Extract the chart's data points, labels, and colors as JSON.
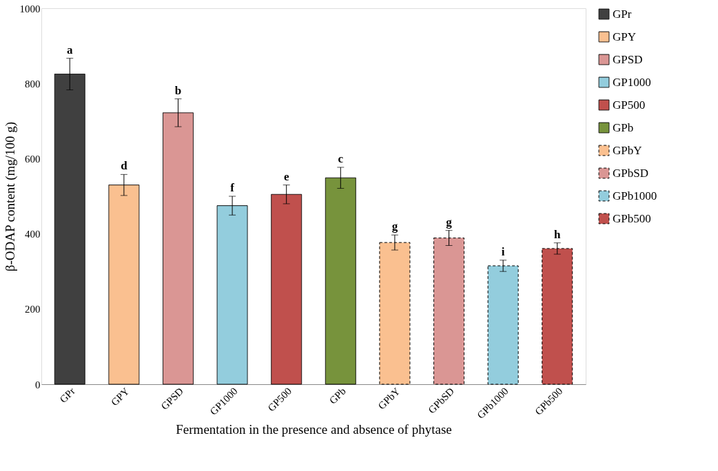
{
  "chart_data": {
    "type": "bar",
    "xlabel": "Fermentation in the presence and absence of phytase",
    "ylabel": "β-ODAP content (mg/100 g)",
    "categories": [
      "GPr",
      "GPY",
      "GPSD",
      "GP1000",
      "GP500",
      "GPb",
      "GPbY",
      "GPbSD",
      "GPb1000",
      "GPb500"
    ],
    "series": [
      {
        "name": "GPr",
        "color": "#404040",
        "values": [
          825,
          null,
          null,
          null,
          null,
          null,
          null,
          null,
          null,
          null
        ],
        "errors": [
          42,
          null,
          null,
          null,
          null,
          null,
          null,
          null,
          null,
          null
        ]
      },
      {
        "name": "GPY",
        "color": "#fac090",
        "values": [
          null,
          530,
          null,
          null,
          null,
          null,
          null,
          null,
          null,
          null
        ],
        "errors": [
          null,
          28,
          null,
          null,
          null,
          null,
          null,
          null,
          null,
          null
        ]
      },
      {
        "name": "GPSD",
        "color": "#da9694",
        "values": [
          null,
          null,
          722,
          null,
          null,
          null,
          null,
          null,
          null,
          null
        ],
        "errors": [
          null,
          null,
          37,
          null,
          null,
          null,
          null,
          null,
          null,
          null
        ]
      },
      {
        "name": "GP1000",
        "color": "#93cddd",
        "values": [
          null,
          null,
          null,
          475,
          null,
          null,
          null,
          null,
          null,
          null
        ],
        "errors": [
          null,
          null,
          null,
          25,
          null,
          null,
          null,
          null,
          null,
          null
        ]
      },
      {
        "name": "GP500",
        "color": "#c0504d",
        "values": [
          null,
          null,
          null,
          null,
          505,
          null,
          null,
          null,
          null,
          null
        ],
        "errors": [
          null,
          null,
          null,
          null,
          25,
          null,
          null,
          null,
          null,
          null
        ]
      },
      {
        "name": "GPb",
        "color": "#77933c",
        "values": [
          null,
          null,
          null,
          null,
          null,
          549,
          null,
          null,
          null,
          null
        ],
        "errors": [
          null,
          null,
          null,
          null,
          null,
          28,
          null,
          null,
          null,
          null
        ]
      },
      {
        "name": "GPbY",
        "color": "#fac090",
        "line_style": "dashed",
        "values": [
          null,
          null,
          null,
          null,
          null,
          null,
          377,
          null,
          null,
          null
        ],
        "errors": [
          null,
          null,
          null,
          null,
          null,
          null,
          20,
          null,
          null,
          null
        ]
      },
      {
        "name": "GPbSD",
        "color": "#da9694",
        "line_style": "dashed",
        "values": [
          null,
          null,
          null,
          null,
          null,
          null,
          null,
          389,
          null,
          null
        ],
        "errors": [
          null,
          null,
          null,
          null,
          null,
          null,
          null,
          20,
          null,
          null
        ]
      },
      {
        "name": "GPb1000",
        "color": "#93cddd",
        "line_style": "dashed",
        "values": [
          null,
          null,
          null,
          null,
          null,
          null,
          null,
          null,
          315,
          null
        ],
        "errors": [
          null,
          null,
          null,
          null,
          null,
          null,
          null,
          null,
          15,
          null
        ]
      },
      {
        "name": "GPb500",
        "color": "#c0504d",
        "line_style": "dashed",
        "values": [
          null,
          null,
          null,
          null,
          null,
          null,
          null,
          null,
          null,
          361
        ],
        "errors": [
          null,
          null,
          null,
          null,
          null,
          null,
          null,
          null,
          null,
          15
        ]
      }
    ],
    "annotations": [
      {
        "text": "a",
        "x": "GPr",
        "y": 867
      },
      {
        "text": "d",
        "x": "GPY",
        "y": 558
      },
      {
        "text": "b",
        "x": "GPSD",
        "y": 759
      },
      {
        "text": "f",
        "x": "GP1000",
        "y": 500
      },
      {
        "text": "e",
        "x": "GP500",
        "y": 530
      },
      {
        "text": "c",
        "x": "GPb",
        "y": 577
      },
      {
        "text": "g",
        "x": "GPbY",
        "y": 397
      },
      {
        "text": "g",
        "x": "GPbSD",
        "y": 409
      },
      {
        "text": "i",
        "x": "GPb1000",
        "y": 330
      },
      {
        "text": "h",
        "x": "GPb500",
        "y": 376
      }
    ],
    "ylim": [
      0,
      1000
    ],
    "yticks": [
      0,
      200,
      400,
      600,
      800,
      1000
    ],
    "grid": false,
    "legend": "right"
  }
}
